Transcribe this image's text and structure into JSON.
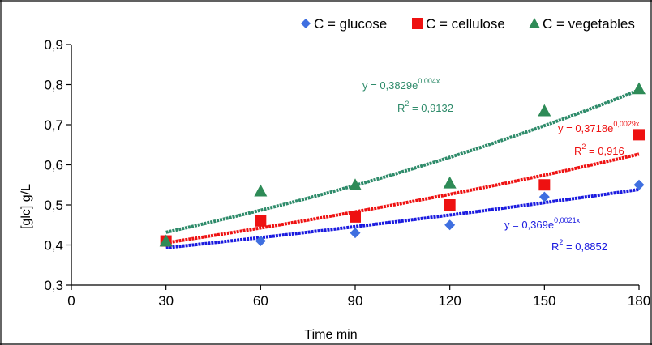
{
  "chart_data": {
    "type": "scatter",
    "xlabel": "Time min",
    "ylabel": "[glc] g/L",
    "xlim": [
      0,
      180
    ],
    "ylim": [
      0.3,
      0.9
    ],
    "xticks": [
      "0",
      "30",
      "60",
      "90",
      "120",
      "150",
      "180"
    ],
    "yticks": [
      "0,3",
      "0,4",
      "0,5",
      "0,6",
      "0,7",
      "0,8",
      "0,9"
    ],
    "legend_position": "top",
    "grid": false,
    "series": [
      {
        "name": "C = glucose",
        "marker": "diamond",
        "color": "#3f6fe0",
        "trend_color": "#1a1adf",
        "x": [
          30,
          60,
          90,
          120,
          150,
          180
        ],
        "y": [
          0.41,
          0.41,
          0.43,
          0.45,
          0.52,
          0.55
        ],
        "trend": {
          "a": 0.369,
          "b": 0.0021
        },
        "equation": {
          "base": "y = 0,369e",
          "exp": "0,0021x",
          "r2_label": "R",
          "r2_exp": "2",
          "r2_value": " = 0,8852"
        }
      },
      {
        "name": "C = cellulose",
        "marker": "square",
        "color": "#ee1111",
        "trend_color": "#ee1111",
        "x": [
          30,
          60,
          90,
          120,
          150,
          180
        ],
        "y": [
          0.41,
          0.46,
          0.47,
          0.5,
          0.55,
          0.675
        ],
        "trend": {
          "a": 0.3718,
          "b": 0.0029
        },
        "equation": {
          "base": "y = 0,3718e",
          "exp": "0,0029x",
          "r2_label": "R",
          "r2_exp": "2",
          "r2_value": " = 0,916"
        }
      },
      {
        "name": "C = vegetables",
        "marker": "triangle",
        "color": "#2e8b57",
        "trend_color": "#2e8b6a",
        "x": [
          30,
          60,
          90,
          120,
          150,
          180
        ],
        "y": [
          0.41,
          0.535,
          0.55,
          0.555,
          0.735,
          0.79
        ],
        "trend": {
          "a": 0.3829,
          "b": 0.004
        },
        "equation": {
          "base": "y = 0,3829e",
          "exp": "0,004x",
          "r2_label": "R",
          "r2_exp": "2",
          "r2_value": " = 0,9132"
        }
      }
    ]
  }
}
